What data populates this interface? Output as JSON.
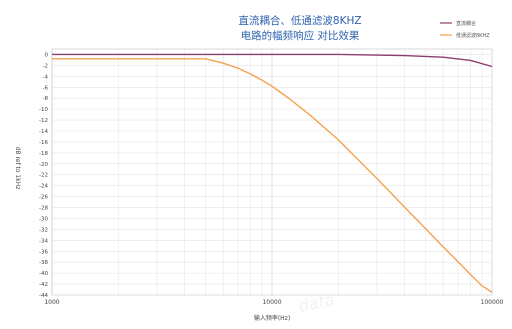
{
  "chart_data": {
    "type": "line",
    "title_lines": [
      "直流耦合、低通滤波8KHZ",
      "电路的幅频响应 对比效果"
    ],
    "xlabel": "输入频率(Hz)",
    "ylabel": "dB ref to 1kHz",
    "x_scale": "log",
    "xlim": [
      1000,
      100000
    ],
    "ylim": [
      -44,
      1
    ],
    "x_ticks": [
      "1000",
      "10000",
      "100000"
    ],
    "y_ticks": [
      "0",
      "-2",
      "-4",
      "-6",
      "-8",
      "-10",
      "-12",
      "-14",
      "-16",
      "-18",
      "-20",
      "-22",
      "-24",
      "-26",
      "-28",
      "-30",
      "-32",
      "-34",
      "-36",
      "-38",
      "-40",
      "-42",
      "-44"
    ],
    "grid": true,
    "legend_position": "top-right",
    "series": [
      {
        "name": "直流耦合",
        "color": "#8e3d6f",
        "x": [
          1000,
          2000,
          5000,
          10000,
          20000,
          40000,
          60000,
          80000,
          100000
        ],
        "y": [
          0,
          0,
          0,
          0,
          0,
          -0.2,
          -0.5,
          -1.1,
          -2.2
        ]
      },
      {
        "name": "低通滤波8KHZ",
        "color": "#f5a150",
        "x": [
          1000,
          2000,
          4000,
          5000,
          6000,
          7000,
          8000,
          9000,
          10000,
          12000,
          15000,
          20000,
          30000,
          40000,
          50000,
          60000,
          70000,
          80000,
          90000,
          100000
        ],
        "y": [
          -0.8,
          -0.8,
          -0.8,
          -0.8,
          -1.6,
          -2.5,
          -3.6,
          -4.7,
          -5.8,
          -8.1,
          -11.2,
          -15.6,
          -22.7,
          -27.9,
          -31.9,
          -35.2,
          -37.9,
          -40.3,
          -42.3,
          -43.5
        ]
      }
    ]
  }
}
